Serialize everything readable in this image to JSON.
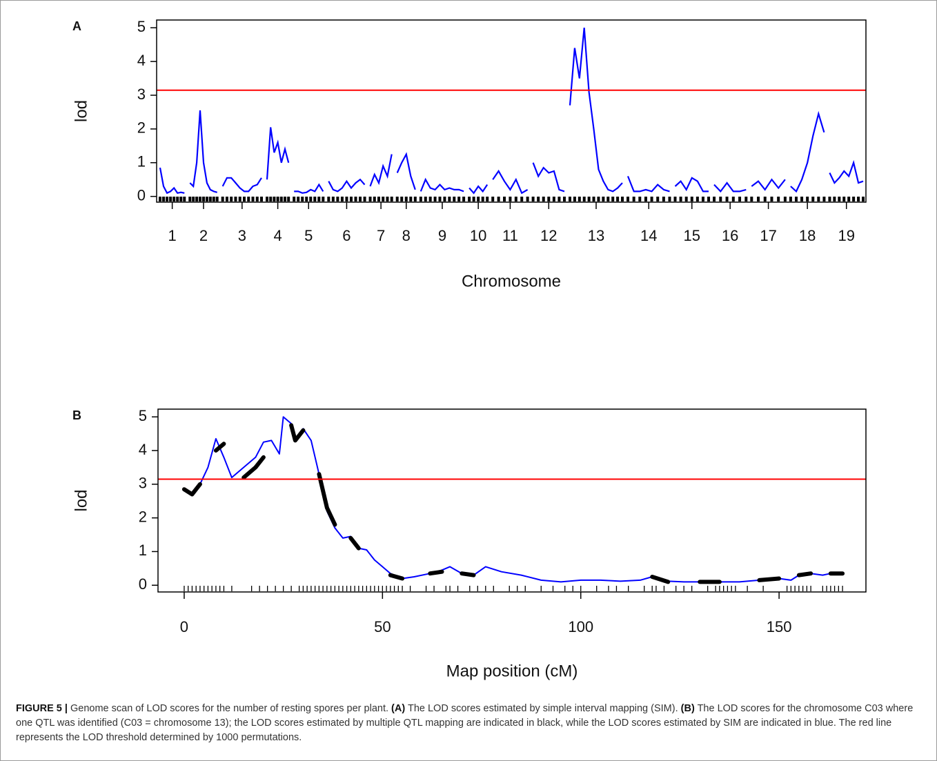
{
  "chart_data": [
    {
      "type": "genome_scan",
      "panel": "A",
      "xlabel": "Chromosome",
      "ylabel": "lod",
      "color": "#0000ff",
      "threshold": 3.15,
      "threshold_color": "#ff0000",
      "ylim": [
        -0.17,
        5.23
      ],
      "yticks": [
        0,
        1,
        2,
        3,
        4,
        5
      ],
      "chromosomes": [
        {
          "label": "1",
          "length": 77,
          "values": [
            0.85,
            0.3,
            0.1,
            0.15,
            0.25,
            0.1,
            0.12,
            0.1
          ]
        },
        {
          "label": "2",
          "length": 86,
          "values": [
            0.4,
            0.3,
            1.0,
            2.55,
            1.0,
            0.4,
            0.2,
            0.15,
            0.12
          ]
        },
        {
          "label": "3",
          "length": 123,
          "values": [
            0.3,
            0.55,
            0.55,
            0.4,
            0.25,
            0.15,
            0.15,
            0.3,
            0.35,
            0.55
          ]
        },
        {
          "label": "4",
          "length": 68,
          "values": [
            0.5,
            2.05,
            1.3,
            1.6,
            1.0,
            1.4,
            1.0
          ]
        },
        {
          "label": "5",
          "length": 92,
          "values": [
            0.15,
            0.15,
            0.1,
            0.12,
            0.2,
            0.15,
            0.35,
            0.15
          ]
        },
        {
          "label": "6",
          "length": 114,
          "values": [
            0.45,
            0.2,
            0.15,
            0.25,
            0.45,
            0.25,
            0.4,
            0.5,
            0.35
          ]
        },
        {
          "label": "7",
          "length": 68,
          "values": [
            0.3,
            0.65,
            0.4,
            0.9,
            0.6,
            1.25
          ]
        },
        {
          "label": "8",
          "length": 57,
          "values": [
            0.7,
            1.0,
            1.25,
            0.6,
            0.2
          ]
        },
        {
          "label": "9",
          "length": 136,
          "values": [
            0.15,
            0.5,
            0.25,
            0.2,
            0.35,
            0.2,
            0.25,
            0.2,
            0.2,
            0.15
          ]
        },
        {
          "label": "10",
          "length": 57,
          "values": [
            0.25,
            0.1,
            0.3,
            0.15,
            0.35
          ]
        },
        {
          "label": "11",
          "length": 110,
          "values": [
            0.5,
            0.75,
            0.45,
            0.2,
            0.5,
            0.1,
            0.2
          ]
        },
        {
          "label": "12",
          "length": 99,
          "values": [
            1.0,
            0.6,
            0.85,
            0.7,
            0.75,
            0.2,
            0.15
          ]
        },
        {
          "label": "13",
          "length": 166,
          "values": [
            2.7,
            4.4,
            3.5,
            5.0,
            3.1,
            2.0,
            0.8,
            0.45,
            0.2,
            0.15,
            0.25,
            0.4
          ]
        },
        {
          "label": "14",
          "length": 132,
          "values": [
            0.6,
            0.15,
            0.15,
            0.2,
            0.15,
            0.35,
            0.2,
            0.15
          ]
        },
        {
          "label": "15",
          "length": 106,
          "values": [
            0.3,
            0.45,
            0.2,
            0.55,
            0.45,
            0.15,
            0.15
          ]
        },
        {
          "label": "16",
          "length": 101,
          "values": [
            0.35,
            0.15,
            0.4,
            0.15,
            0.15,
            0.2
          ]
        },
        {
          "label": "17",
          "length": 106,
          "values": [
            0.3,
            0.45,
            0.2,
            0.5,
            0.25,
            0.5
          ]
        },
        {
          "label": "18",
          "length": 106,
          "values": [
            0.3,
            0.15,
            0.5,
            1.0,
            1.8,
            2.45,
            1.9
          ]
        },
        {
          "label": "19",
          "length": 106,
          "values": [
            0.7,
            0.4,
            0.55,
            0.75,
            0.6,
            1.0,
            0.4,
            0.45
          ]
        }
      ]
    },
    {
      "type": "line",
      "panel": "B",
      "xlabel": "Map position (cM)",
      "ylabel": "lod",
      "threshold": 3.15,
      "threshold_color": "#ff0000",
      "xlim": [
        -6.6,
        171.9
      ],
      "xticks": [
        0,
        50,
        100,
        150
      ],
      "ylim": [
        -0.2,
        5.23
      ],
      "yticks": [
        0,
        1,
        2,
        3,
        4,
        5
      ],
      "x": [
        0,
        2,
        4,
        6,
        8,
        10,
        12,
        15,
        18,
        20,
        22,
        24,
        25,
        27,
        28,
        30,
        32,
        34,
        36,
        38,
        40,
        42,
        44,
        46,
        48,
        50,
        52,
        55,
        58,
        62,
        65,
        67,
        70,
        73,
        76,
        80,
        85,
        90,
        95,
        100,
        105,
        110,
        115,
        118,
        122,
        126,
        130,
        135,
        140,
        145,
        150,
        153,
        155,
        158,
        161,
        163,
        166
      ],
      "series": [
        {
          "color": "#0000ff",
          "width": 2,
          "values": [
            2.85,
            2.75,
            3.0,
            3.5,
            4.35,
            3.8,
            3.2,
            3.5,
            3.8,
            4.25,
            4.3,
            3.9,
            5.0,
            4.8,
            4.3,
            4.65,
            4.3,
            3.3,
            2.2,
            1.7,
            1.4,
            1.45,
            1.1,
            1.05,
            0.75,
            0.55,
            0.35,
            0.2,
            0.25,
            0.35,
            0.45,
            0.55,
            0.35,
            0.3,
            0.55,
            0.4,
            0.3,
            0.15,
            0.1,
            0.15,
            0.15,
            0.12,
            0.15,
            0.25,
            0.12,
            0.1,
            0.1,
            0.1,
            0.1,
            0.15,
            0.2,
            0.15,
            0.3,
            0.35,
            0.3,
            0.35,
            0.35
          ]
        },
        {
          "color": "#000000",
          "width": 6,
          "values": [
            2.85,
            2.7,
            3.0,
            null,
            4.0,
            4.2,
            null,
            3.2,
            3.5,
            3.8,
            null,
            4.3,
            null,
            4.75,
            4.3,
            4.6,
            null,
            3.3,
            2.3,
            1.8,
            null,
            1.4,
            1.1,
            null,
            0.7,
            null,
            0.3,
            0.2,
            null,
            0.35,
            0.4,
            null,
            0.35,
            0.3,
            null,
            0.4,
            null,
            0.15,
            null,
            0.15,
            null,
            0.15,
            null,
            0.25,
            0.1,
            null,
            0.1,
            0.1,
            null,
            0.15,
            0.2,
            null,
            0.3,
            0.35,
            null,
            0.35,
            0.35
          ]
        }
      ],
      "markers": [
        0,
        1,
        2,
        3,
        4,
        5,
        6,
        7,
        8,
        9,
        10,
        12,
        17,
        19,
        21,
        23,
        25,
        27,
        29,
        30,
        31,
        32,
        33,
        34,
        35,
        36,
        37,
        38,
        39,
        40,
        41,
        42,
        43,
        44,
        45,
        46,
        47,
        48,
        49,
        50,
        51,
        52,
        53,
        54,
        55,
        57,
        61,
        63,
        66,
        67,
        69,
        72,
        74,
        76,
        78,
        82,
        84,
        86,
        90,
        93,
        96,
        98,
        100,
        104,
        107,
        109,
        112,
        116,
        118,
        119,
        121,
        124,
        126,
        128,
        132,
        134,
        135,
        136,
        137,
        138,
        139,
        142,
        146,
        152,
        153,
        154,
        155,
        156,
        157,
        158,
        161,
        162,
        163,
        164,
        165,
        166
      ]
    }
  ],
  "caption": {
    "label": "FIGURE 5 |",
    "parts": [
      {
        "text": "Genome scan of LOD scores for the number of resting spores per plant.",
        "bold": false
      },
      {
        "text": "(A)",
        "bold": true
      },
      {
        "text": "The LOD scores estimated by simple interval mapping (SIM).",
        "bold": false
      },
      {
        "text": "(B)",
        "bold": true
      },
      {
        "text": "The LOD scores for the chromosome C03 where one QTL was identified (C03 = chromosome 13); the LOD scores estimated by multiple QTL mapping are indicated in black, while the LOD scores estimated by SIM are indicated in blue. The red line represents the LOD threshold determined by 1000 permutations.",
        "bold": false
      }
    ]
  }
}
